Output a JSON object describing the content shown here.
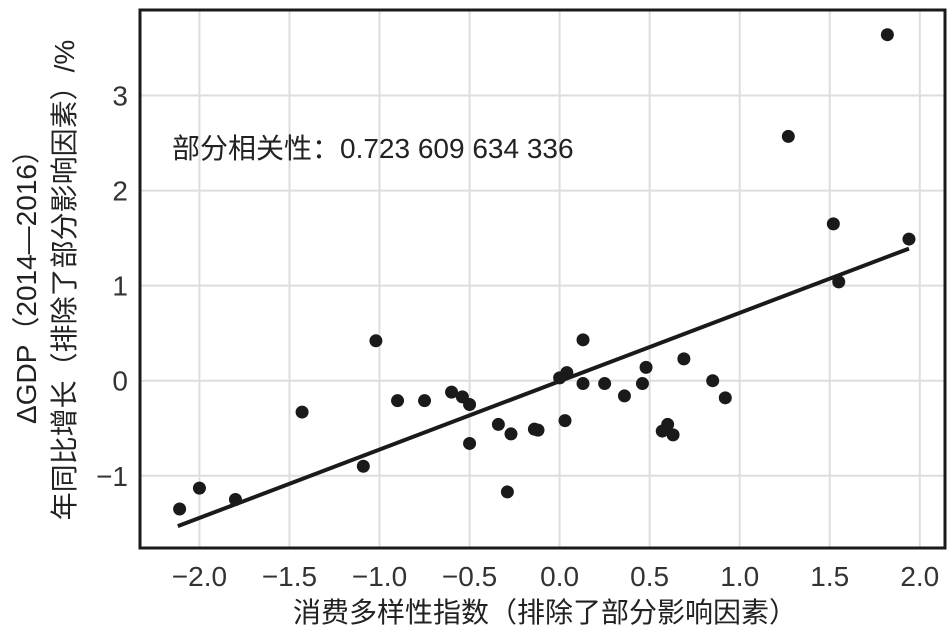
{
  "chart_data": {
    "type": "scatter",
    "title": "",
    "xlabel": "消费多样性指数（排除了部分影响因素）",
    "ylabel_lines": [
      "ΔGDP（2014—2016）",
      "年同比增长（排除了部分影响因素）/%"
    ],
    "annotation": "部分相关性：0.723 609 634 336",
    "xlim": [
      -2.33,
      2.14
    ],
    "ylim": [
      -1.76,
      3.9
    ],
    "x_ticks": [
      -2.0,
      -1.5,
      -1.0,
      -0.5,
      0.0,
      0.5,
      1.0,
      1.5,
      2.0
    ],
    "x_tick_labels": [
      "−2.0",
      "−1.5",
      "−1.0",
      "−0.5",
      "0.0",
      "0.5",
      "1.0",
      "1.5",
      "2.0"
    ],
    "y_ticks": [
      -1,
      0,
      1,
      2,
      3
    ],
    "y_tick_labels": [
      "−1",
      "0",
      "1",
      "2",
      "3"
    ],
    "grid": true,
    "marker_color": "#1a1a1a",
    "line_color": "#1a1a1a",
    "grid_color": "#dddddd",
    "points": [
      [
        -2.11,
        -1.35
      ],
      [
        -2.0,
        -1.13
      ],
      [
        -1.8,
        -1.25
      ],
      [
        -1.43,
        -0.33
      ],
      [
        -1.02,
        0.42
      ],
      [
        -1.09,
        -0.9
      ],
      [
        -0.9,
        -0.21
      ],
      [
        -0.75,
        -0.21
      ],
      [
        -0.6,
        -0.12
      ],
      [
        -0.54,
        -0.17
      ],
      [
        -0.5,
        -0.25
      ],
      [
        -0.5,
        -0.66
      ],
      [
        -0.34,
        -0.46
      ],
      [
        -0.27,
        -0.56
      ],
      [
        -0.12,
        -0.52
      ],
      [
        -0.29,
        -1.17
      ],
      [
        1.82,
        3.64
      ],
      [
        1.27,
        2.57
      ],
      [
        1.52,
        1.65
      ],
      [
        1.94,
        1.49
      ],
      [
        1.55,
        1.04
      ],
      [
        0.13,
        0.43
      ],
      [
        0.69,
        0.23
      ],
      [
        0.48,
        0.14
      ],
      [
        0.04,
        0.085
      ],
      [
        0.0,
        0.03
      ],
      [
        0.13,
        -0.03
      ],
      [
        0.25,
        -0.03
      ],
      [
        0.46,
        -0.03
      ],
      [
        0.85,
        0.0
      ],
      [
        0.36,
        -0.16
      ],
      [
        0.92,
        -0.18
      ],
      [
        0.03,
        -0.42
      ],
      [
        -0.14,
        -0.51
      ],
      [
        0.57,
        -0.53
      ],
      [
        0.6,
        -0.46
      ],
      [
        0.63,
        -0.57
      ]
    ],
    "fit_line": {
      "x": [
        -2.12,
        1.94
      ],
      "y": [
        -1.53,
        1.39
      ]
    }
  }
}
